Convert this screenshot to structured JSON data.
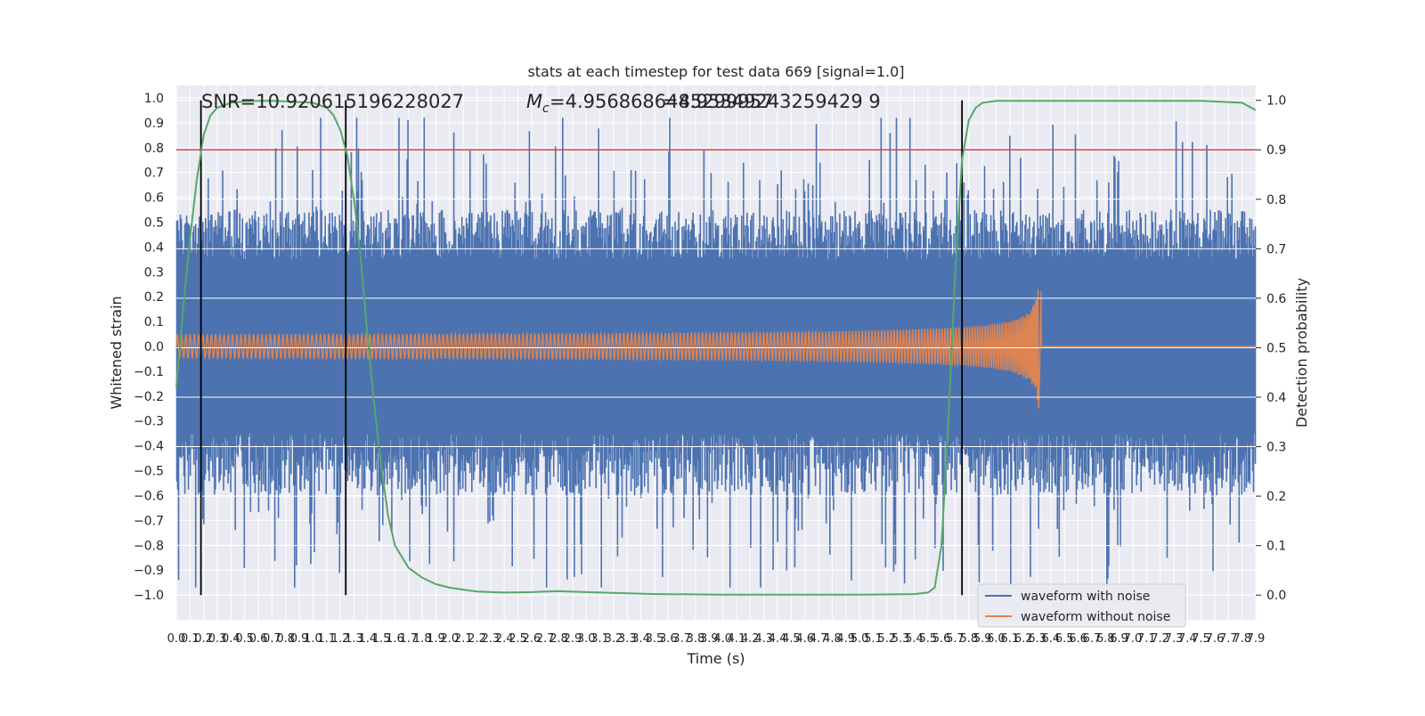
{
  "chart_data": {
    "type": "line",
    "title": "stats at each timestep for test data 669 [signal=1.0]",
    "xlabel": "Time (s)",
    "ylabel_left": "Whitened strain",
    "ylabel_right": "Detection probability",
    "xlim": [
      0.0,
      7.9
    ],
    "ylim_left": [
      -1.1,
      1.05
    ],
    "ylim_right": [
      -0.05,
      1.03
    ],
    "x_tick_labels": [
      "0.0",
      "0.1",
      "0.2",
      "0.3",
      "0.4",
      "0.5",
      "0.6",
      "0.7",
      "0.8",
      "0.9",
      "1.0",
      "1.1",
      "1.2",
      "1.3",
      "1.4",
      "1.5",
      "1.6",
      "1.7",
      "1.8",
      "1.9",
      "2.0",
      "2.1",
      "2.2",
      "2.3",
      "2.4",
      "2.5",
      "2.6",
      "2.7",
      "2.8",
      "2.9",
      "3.0",
      "3.1",
      "3.2",
      "3.3",
      "3.4",
      "3.5",
      "3.6",
      "3.7",
      "3.8",
      "3.9",
      "4.0",
      "4.1",
      "4.2",
      "4.3",
      "4.4",
      "4.5",
      "4.6",
      "4.7",
      "4.8",
      "4.9",
      "5.0",
      "5.1",
      "5.2",
      "5.3",
      "5.4",
      "5.5",
      "5.6",
      "5.7",
      "5.8",
      "5.9",
      "6.0",
      "6.1",
      "6.2",
      "6.3",
      "6.4",
      "6.5",
      "6.6",
      "6.7",
      "6.8",
      "6.9",
      "7.0",
      "7.1",
      "7.2",
      "7.3",
      "7.4",
      "7.5",
      "7.6",
      "7.7",
      "7.8",
      "7.9"
    ],
    "y_tick_labels_left": [
      "1.0",
      "0.9",
      "0.8",
      "0.7",
      "0.6",
      "0.5",
      "0.4",
      "0.3",
      "0.2",
      "0.1",
      "0.0",
      "−0.1",
      "−0.2",
      "−0.3",
      "−0.4",
      "−0.5",
      "−0.6",
      "−0.7",
      "−0.8",
      "−0.9",
      "−1.0"
    ],
    "y_tick_labels_right": [
      "1.0",
      "0.9",
      "0.8",
      "0.7",
      "0.6",
      "0.5",
      "0.4",
      "0.3",
      "0.2",
      "0.1",
      "0.0"
    ],
    "annotations": {
      "snr": "SNR=10.920615196228027",
      "mc_overlap_a": "=4.9568686485299957",
      "mc_overlap_b": "=4.95349243259429 9",
      "mc_symbol": "M",
      "mc_subscript": "c"
    },
    "threshold_right": 0.9,
    "vertical_markers_s": [
      0.18,
      1.24,
      5.75
    ],
    "series": [
      {
        "name": "waveform with noise",
        "color": "#4c72b0",
        "kind": "noise",
        "envelope_typical": 0.35,
        "envelope_max": 0.92
      },
      {
        "name": "waveform without noise",
        "color": "#dd8452",
        "kind": "chirp",
        "amplitude_start": 0.03,
        "amplitude_peak": 0.25,
        "end_time_s": 6.33
      },
      {
        "name": "Detection probability",
        "color": "#55a868",
        "axis": "right",
        "x": [
          0.0,
          0.05,
          0.1,
          0.15,
          0.2,
          0.25,
          0.3,
          0.4,
          0.5,
          0.6,
          0.7,
          0.8,
          1.0,
          1.1,
          1.15,
          1.2,
          1.25,
          1.3,
          1.35,
          1.4,
          1.45,
          1.5,
          1.55,
          1.6,
          1.7,
          1.8,
          1.9,
          2.0,
          2.2,
          2.4,
          2.6,
          2.8,
          3.0,
          3.5,
          4.0,
          4.5,
          5.0,
          5.4,
          5.5,
          5.55,
          5.6,
          5.65,
          5.7,
          5.75,
          5.8,
          5.85,
          5.9,
          6.0,
          6.5,
          7.0,
          7.5,
          7.8,
          7.9
        ],
        "y": [
          0.42,
          0.58,
          0.72,
          0.84,
          0.93,
          0.97,
          0.985,
          0.995,
          0.998,
          0.999,
          0.999,
          0.998,
          0.995,
          0.985,
          0.97,
          0.94,
          0.89,
          0.8,
          0.68,
          0.52,
          0.38,
          0.26,
          0.16,
          0.1,
          0.055,
          0.035,
          0.022,
          0.015,
          0.007,
          0.005,
          0.006,
          0.008,
          0.006,
          0.002,
          0.001,
          0.001,
          0.001,
          0.002,
          0.005,
          0.015,
          0.1,
          0.35,
          0.65,
          0.88,
          0.96,
          0.985,
          0.995,
          0.999,
          0.999,
          0.999,
          0.999,
          0.995,
          0.98
        ]
      }
    ],
    "legend": {
      "placement": "bottom-right",
      "entries": [
        "waveform with noise",
        "waveform without noise"
      ]
    },
    "grid": true,
    "colors": {
      "axes_background": "#eaeaf2",
      "grid": "#ffffff",
      "threshold": "#c44e52",
      "markers": "#000000"
    }
  }
}
